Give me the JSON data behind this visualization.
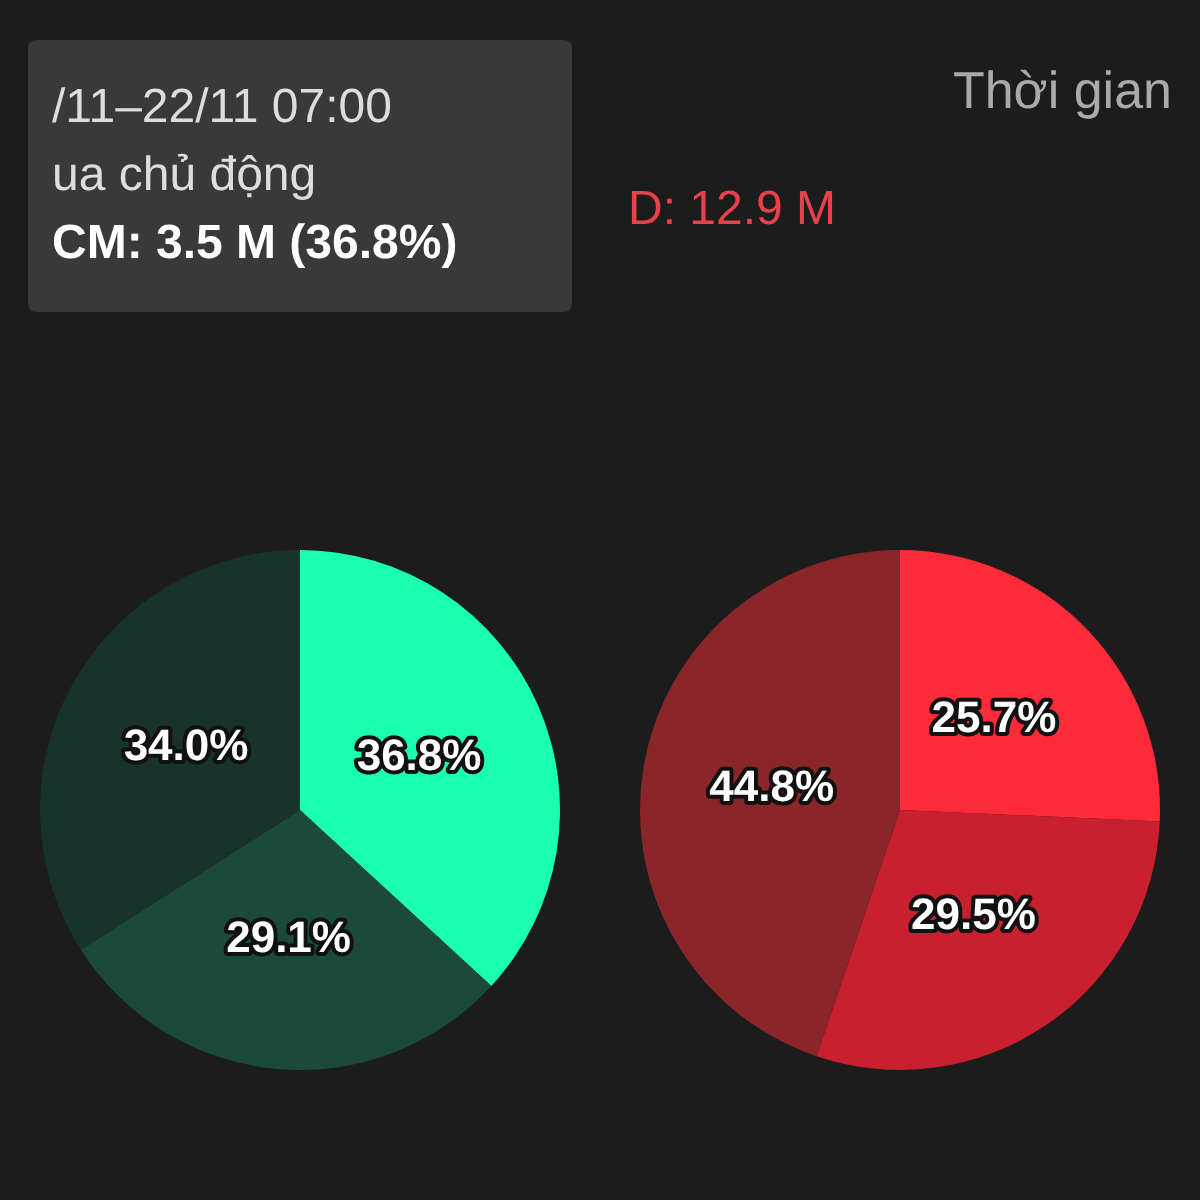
{
  "chart_data": [
    {
      "type": "pie",
      "categories": [
        null,
        null,
        null
      ],
      "values": [
        36.8,
        29.1,
        34.0
      ],
      "colors": [
        "#1affb0",
        "#1b4a3a",
        "#17332b"
      ],
      "value_labels": [
        "36.8%",
        "29.1%",
        "34.0%"
      ],
      "annotations": [
        "/11–22/11 07:00",
        "ua chủ động",
        "CM: 3.5 M (36.8%)"
      ]
    },
    {
      "type": "pie",
      "categories": [
        null,
        null,
        null
      ],
      "values": [
        25.7,
        29.5,
        44.8
      ],
      "colors": [
        "#ff2a3a",
        "#c9202f",
        "#8a2629"
      ],
      "value_labels": [
        "25.7%",
        "29.5%",
        "44.8%"
      ],
      "annotations": [
        "Thời gian",
        "D: 12.9 M"
      ]
    }
  ]
}
